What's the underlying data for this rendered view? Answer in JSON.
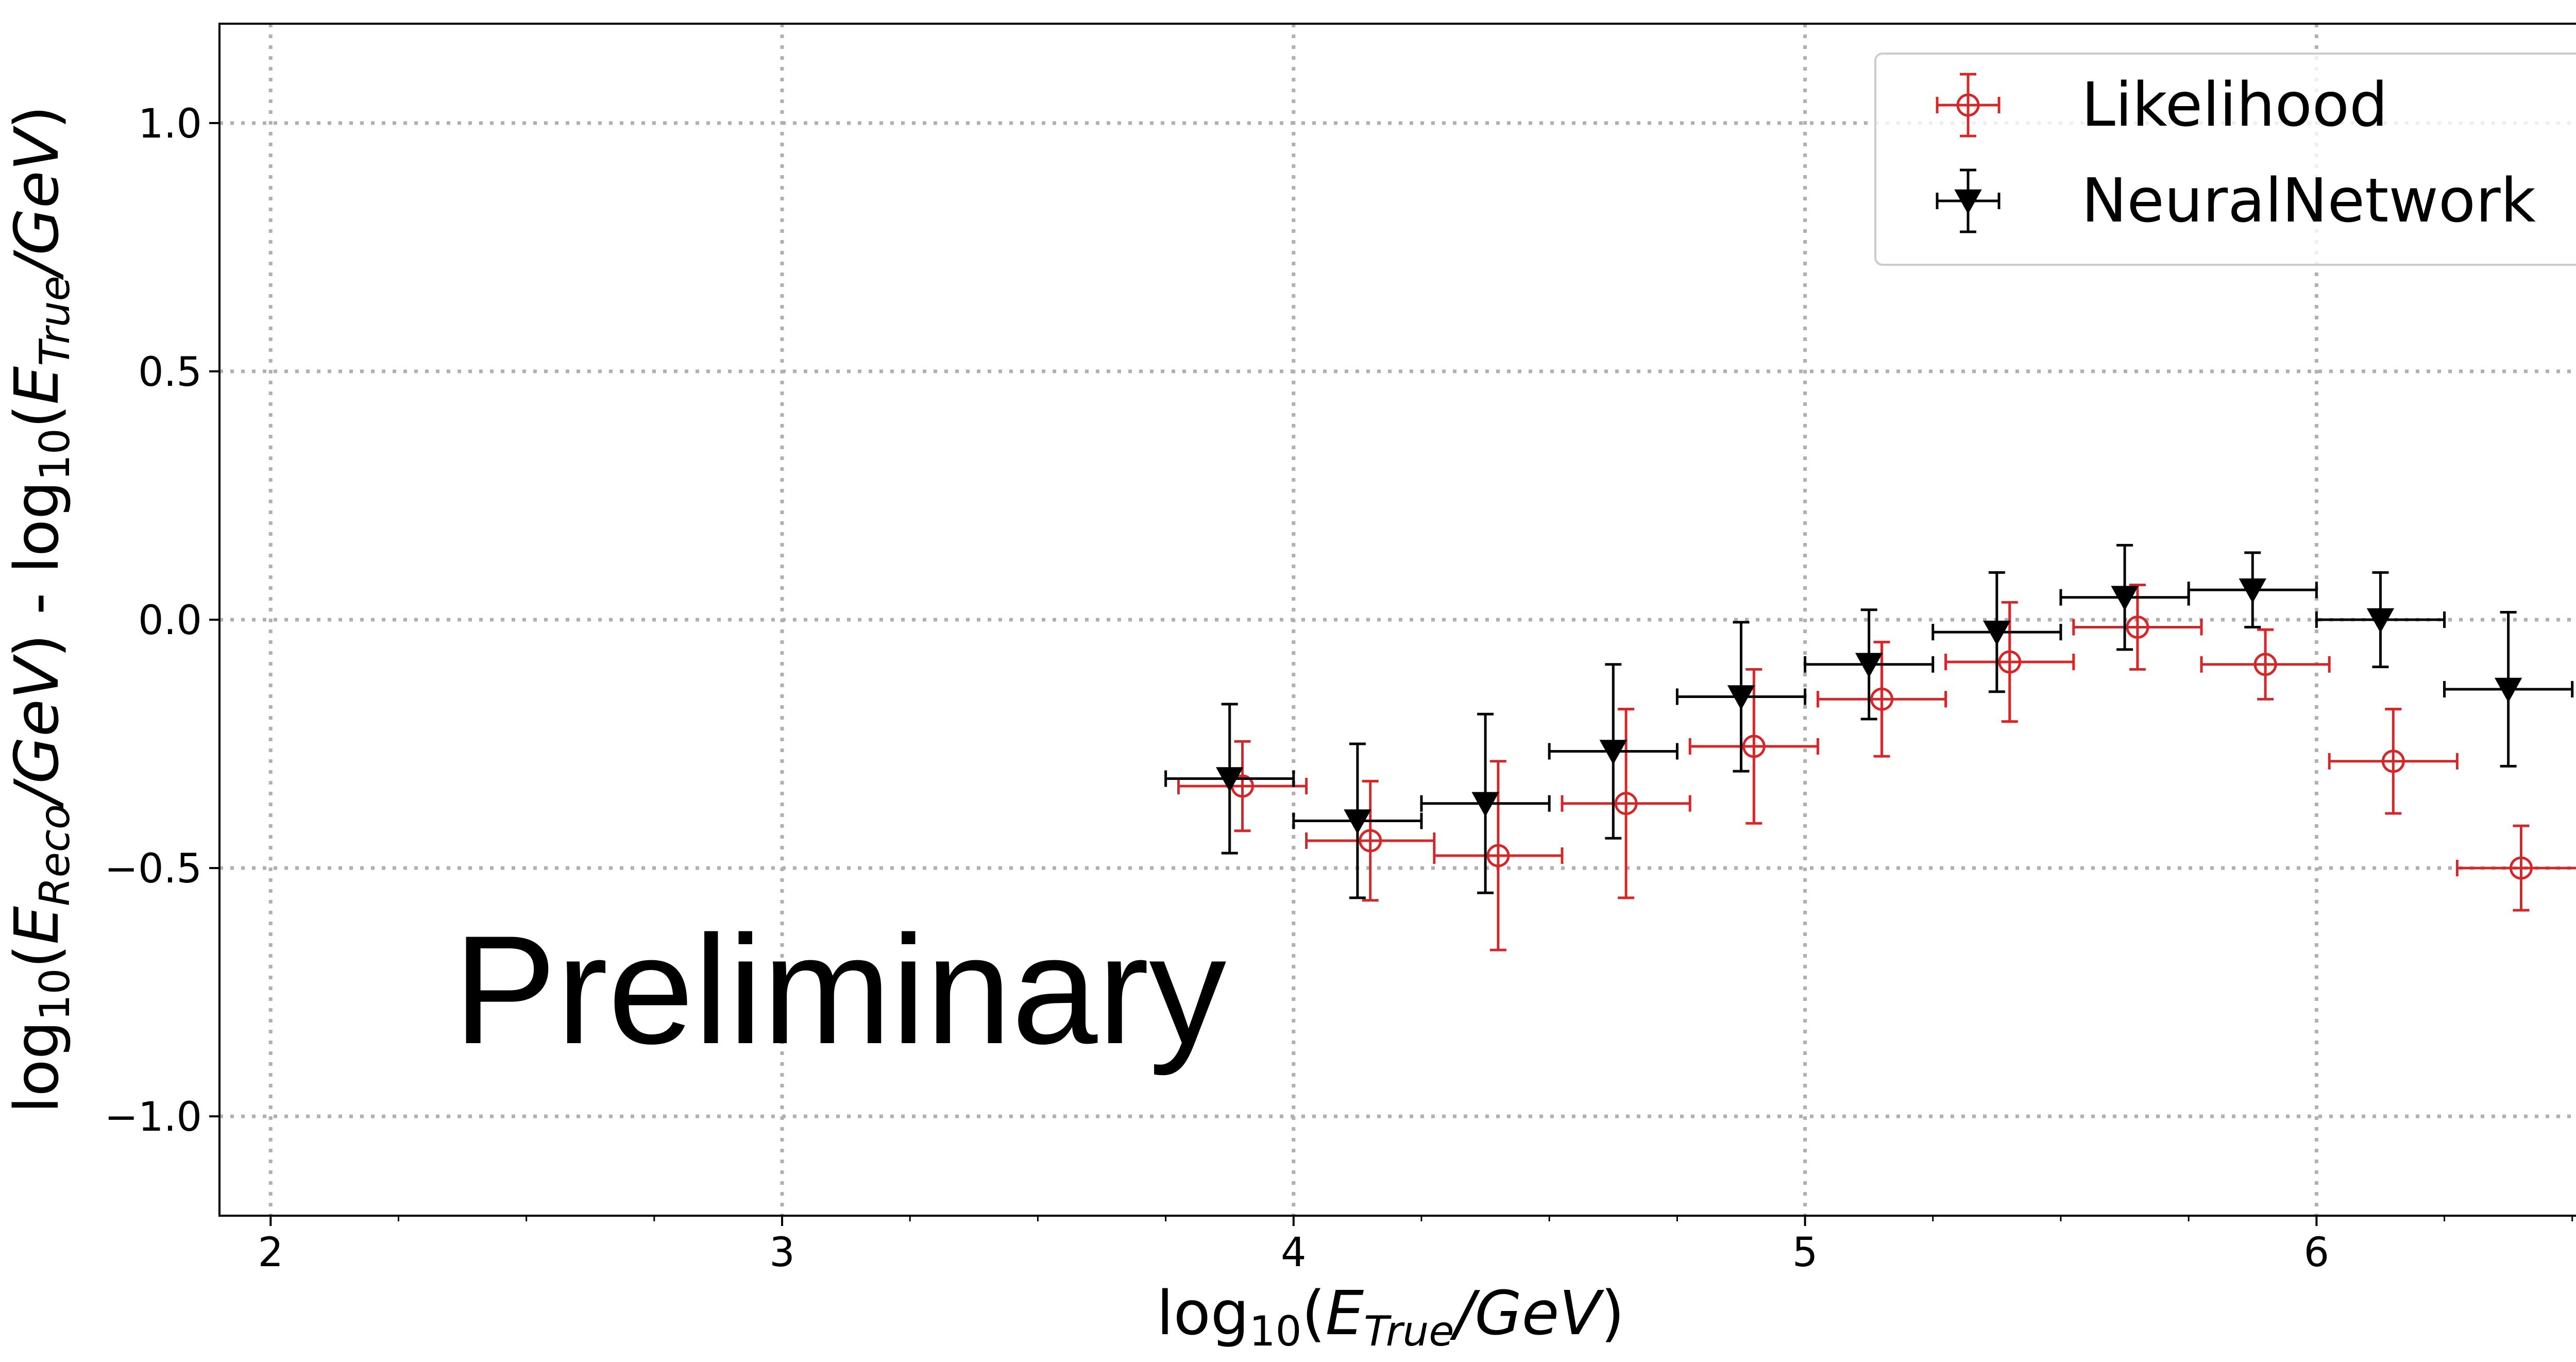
{
  "chart_data": {
    "type": "scatter",
    "title": "",
    "xlabel": {
      "prefix": "log",
      "sub": "10",
      "open": "(",
      "e": "E",
      "esub": "True",
      "unit": "/GeV",
      "close": ")"
    },
    "ylabel": {
      "a_prefix": "log",
      "a_sub": "10",
      "a_open": "(",
      "a_e": "E",
      "a_esub": "Reco",
      "a_unit": "/GeV",
      "a_close": ")",
      "mid": " - ",
      "b_prefix": "log",
      "b_sub": "10",
      "b_open": "(",
      "b_e": "E",
      "b_esub": "True",
      "b_unit": "/GeV",
      "b_close": ")"
    },
    "xlim": [
      1.9,
      6.6
    ],
    "ylim": [
      -1.2,
      1.2
    ],
    "xticks": [
      2,
      3,
      4,
      5,
      6
    ],
    "xtick_labels": [
      "2",
      "3",
      "4",
      "5",
      "6"
    ],
    "yticks": [
      -1.0,
      -0.5,
      0.0,
      0.5,
      1.0
    ],
    "ytick_labels": [
      "−1.0",
      "−0.5",
      "0.0",
      "0.5",
      "1.0"
    ],
    "grid": true,
    "legend_position": "top-right",
    "annotation": "Preliminary",
    "series": [
      {
        "name": "Likelihood",
        "color": "#d62728",
        "marker": "open-circle",
        "x": [
          3.9,
          4.15,
          4.4,
          4.65,
          4.9,
          5.15,
          5.4,
          5.65,
          5.9,
          6.15,
          6.4
        ],
        "y": [
          -0.335,
          -0.445,
          -0.475,
          -0.37,
          -0.255,
          -0.16,
          -0.085,
          -0.015,
          -0.09,
          -0.285,
          -0.5
        ],
        "xerr": 0.125,
        "yerr": [
          0.09,
          0.12,
          0.19,
          0.19,
          0.155,
          0.115,
          0.12,
          0.085,
          0.07,
          0.105,
          0.085
        ]
      },
      {
        "name": "NeuralNetwork",
        "color": "#000000",
        "marker": "filled-triangle-down",
        "x": [
          3.875,
          4.125,
          4.375,
          4.625,
          4.875,
          5.125,
          5.375,
          5.625,
          5.875,
          6.125,
          6.375
        ],
        "y": [
          -0.32,
          -0.405,
          -0.37,
          -0.265,
          -0.155,
          -0.09,
          -0.025,
          0.045,
          0.06,
          0.0,
          -0.14
        ],
        "xerr": 0.125,
        "yerr": [
          0.15,
          0.155,
          0.18,
          0.175,
          0.15,
          0.11,
          0.12,
          0.105,
          0.075,
          0.095,
          0.155
        ]
      }
    ]
  }
}
